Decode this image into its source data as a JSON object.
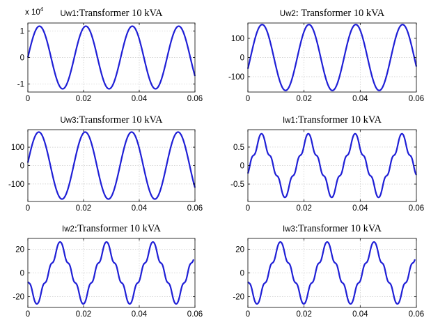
{
  "figure": {
    "line_color": "#1f1fd6",
    "grid_color": "#c8c8c8",
    "axes_color": "#000000"
  },
  "chart_data": [
    {
      "type": "line",
      "title_prefix": "Uw1",
      "title_rest": ":Transformer 10 kVA",
      "exponent_label": "x 10",
      "exponent_power": "4",
      "xlim": [
        0,
        0.06
      ],
      "ylim": [
        -1.3,
        1.3
      ],
      "xticks": [
        0,
        0.02,
        0.04,
        0.06
      ],
      "xtick_labels": [
        "0",
        "0.02",
        "0.04",
        "0.06"
      ],
      "yticks": [
        -1,
        0,
        1
      ],
      "ytick_labels": [
        "-1",
        "0",
        "1"
      ],
      "grid": true,
      "signal": {
        "amplitude": 1.18,
        "frequency_hz": 60,
        "phase_deg": 0,
        "h3": 0,
        "h5": 0,
        "h7": 0
      },
      "x_range": [
        0,
        0.06
      ]
    },
    {
      "type": "line",
      "title_prefix": "Uw2",
      "title_rest": ": Transformer 10 kVA",
      "xlim": [
        0,
        0.06
      ],
      "ylim": [
        -180,
        180
      ],
      "xticks": [
        0,
        0.02,
        0.04,
        0.06
      ],
      "xtick_labels": [
        "0",
        "0.02",
        "0.04",
        "0.06"
      ],
      "yticks": [
        -100,
        0,
        100
      ],
      "ytick_labels": [
        "-100",
        "0",
        "100"
      ],
      "grid": true,
      "signal": {
        "amplitude": 172,
        "frequency_hz": 60,
        "phase_deg": -20,
        "h3": 0,
        "h5": 0,
        "h7": 0
      },
      "x_range": [
        0,
        0.06
      ]
    },
    {
      "type": "line",
      "title_prefix": "Uw3",
      "title_rest": ":Transformer 10 kVA",
      "xlim": [
        0,
        0.06
      ],
      "ylim": [
        -195,
        195
      ],
      "xticks": [
        0,
        0.02,
        0.04,
        0.06
      ],
      "xtick_labels": [
        "0",
        "0.02",
        "0.04",
        "0.06"
      ],
      "yticks": [
        -100,
        0,
        100
      ],
      "ytick_labels": [
        "-100",
        "0",
        "100"
      ],
      "grid": true,
      "signal": {
        "amplitude": 182,
        "frequency_hz": 60,
        "phase_deg": 5,
        "h3": 0,
        "h5": 0,
        "h7": 0
      },
      "x_range": [
        0,
        0.06
      ]
    },
    {
      "type": "line",
      "title_prefix": "Iw1",
      "title_rest": ":Transformer 10 kVA",
      "xlim": [
        0,
        0.06
      ],
      "ylim": [
        -0.97,
        0.97
      ],
      "xticks": [
        0,
        0.02,
        0.04,
        0.06
      ],
      "xtick_labels": [
        "0",
        "0.02",
        "0.04",
        "0.06"
      ],
      "yticks": [
        -0.5,
        0,
        0.5
      ],
      "ytick_labels": [
        "-0.5",
        "0",
        "0.5"
      ],
      "grid": true,
      "signal": {
        "amplitude": 0.72,
        "frequency_hz": 60,
        "phase_deg": -15,
        "h3": -0.1,
        "h5": 0.07,
        "h7": 0.03
      },
      "x_range": [
        0,
        0.06
      ]
    },
    {
      "type": "line",
      "title_prefix": "Iw2",
      "title_rest": ":Transformer 10 kVA",
      "xlim": [
        0,
        0.06
      ],
      "ylim": [
        -29,
        29
      ],
      "xticks": [
        0,
        0.02,
        0.04,
        0.06
      ],
      "xtick_labels": [
        "0",
        "0.02",
        "0.04",
        "0.06"
      ],
      "yticks": [
        -20,
        0,
        20
      ],
      "ytick_labels": [
        "-20",
        "0",
        "20"
      ],
      "grid": true,
      "signal": {
        "amplitude": 22,
        "frequency_hz": 60,
        "phase_deg": 200,
        "h3": -3,
        "h5": 2,
        "h7": 1
      },
      "x_range": [
        0,
        0.0595
      ]
    },
    {
      "type": "line",
      "title_prefix": "Iw3",
      "title_rest": ":Transformer 10 kVA",
      "xlim": [
        0,
        0.06
      ],
      "ylim": [
        -29,
        29
      ],
      "xticks": [
        0,
        0.02,
        0.04,
        0.06
      ],
      "xtick_labels": [
        "0",
        "0.02",
        "0.04",
        "0.06"
      ],
      "yticks": [
        -20,
        0,
        20
      ],
      "ytick_labels": [
        "-20",
        "0",
        "20"
      ],
      "grid": true,
      "signal": {
        "amplitude": 22,
        "frequency_hz": 60,
        "phase_deg": 200,
        "h3": -3,
        "h5": 2,
        "h7": 1
      },
      "x_range": [
        0,
        0.0595
      ]
    }
  ]
}
